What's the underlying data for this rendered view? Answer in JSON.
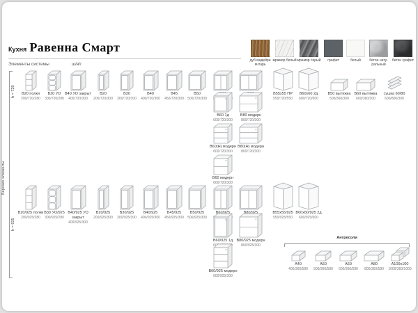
{
  "page": {
    "title_prefix": "Кухня",
    "title": "Равенна Смарт",
    "subtitle": "Элементы системы",
    "dims_legend": "ш/в/г"
  },
  "materials": [
    {
      "label": "дуб мадейра янтарь",
      "finish": "wood",
      "color": "#9a6e3c"
    },
    {
      "label": "мрамор белый",
      "finish": "marble-white",
      "color": "#f2f2f0"
    },
    {
      "label": "мрамор серый",
      "finish": "marble-grey",
      "color": "#6e7072"
    },
    {
      "label": "графит",
      "finish": "graphite",
      "color": "#5d6266"
    },
    {
      "label": "белый",
      "finish": "white",
      "color": "#f8f8f6"
    },
    {
      "label": "бетон нату-ральный",
      "finish": "concrete-natural",
      "color": "#b4b6b8"
    },
    {
      "label": "бетон графит",
      "finish": "concrete-graphite",
      "color": "#3b3d3f"
    }
  ],
  "side_label": "Верхние элементы",
  "groups": [
    {
      "height_label": "h = 720",
      "items": [
        {
          "name": "В20 полки",
          "dims": "200/720/280",
          "icon": "cabinet-shelves"
        },
        {
          "name": "В30 УО",
          "dims": "300/720/280",
          "icon": "cabinet-open-rounded"
        },
        {
          "name": "В40 УО закрыт",
          "dims": "400/720/300",
          "icon": "cabinet-door"
        },
        {
          "name": "В20",
          "dims": "200/720/300",
          "icon": "cabinet-door"
        },
        {
          "name": "В30",
          "dims": "300/720/300",
          "icon": "cabinet-door"
        },
        {
          "name": "В40",
          "dims": "400/720/300",
          "icon": "cabinet-door"
        },
        {
          "name": "В45",
          "dims": "450/720/300",
          "icon": "cabinet-door"
        },
        {
          "name": "В50",
          "dims": "500/720/300",
          "icon": "cabinet-door"
        },
        {
          "name": "В60",
          "dims": "600/720/300",
          "icon": "cabinet-2door"
        },
        {
          "name": "В80",
          "dims": "800/720/300",
          "icon": "cabinet-2door"
        },
        {
          "name": "В55х55 ПР",
          "dims": "550/720/550",
          "icon": "cabinet-corner"
        },
        {
          "name": "В60х60 2д",
          "dims": "600/720/600",
          "icon": "cabinet-corner"
        },
        {
          "name": "В50 вытяжка",
          "dims": "500/360/300",
          "icon": "hood-box"
        },
        {
          "name": "В60 вытяжка",
          "dims": "600/360/300",
          "icon": "hood-box"
        },
        {
          "name": "сушка 60/80",
          "dims": "600/800/300",
          "icon": "dish-dryer"
        }
      ],
      "extras": [
        {
          "row": 0,
          "col": 8,
          "name": "В60 1д",
          "dims": "600/720/300",
          "icon": "cabinet-door-handle"
        },
        {
          "row": 0,
          "col": 9,
          "name": "В80 модерн",
          "dims": "800/720/300",
          "icon": "cabinet-modern-2"
        },
        {
          "row": 1,
          "col": 8,
          "name": "В60(Н) модерн",
          "dims": "600/720/300",
          "icon": "cabinet-modern-3"
        },
        {
          "row": 1,
          "col": 9,
          "name": "В80(Н) модерн",
          "dims": "800/720/300",
          "icon": "cabinet-modern-3"
        },
        {
          "row": 2,
          "col": 8,
          "name": "В60 модерн",
          "dims": "600/720/300",
          "icon": "cabinet-modern-2"
        }
      ]
    },
    {
      "height_label": "h = 925",
      "items": [
        {
          "name": "В20/925 полки",
          "dims": "200/925/280",
          "icon": "cabinet-shelves"
        },
        {
          "name": "В30 УО/925",
          "dims": "300/925/280",
          "icon": "cabinet-open-rounded"
        },
        {
          "name": "В40/925 УО закрыт",
          "dims": "400/925/300",
          "icon": "cabinet-door"
        },
        {
          "name": "В20/925",
          "dims": "200/925/300",
          "icon": "cabinet-door"
        },
        {
          "name": "В30/925",
          "dims": "300/925/300",
          "icon": "cabinet-door"
        },
        {
          "name": "В40/925",
          "dims": "400/925/300",
          "icon": "cabinet-door"
        },
        {
          "name": "В45/925",
          "dims": "450/925/300",
          "icon": "cabinet-door"
        },
        {
          "name": "В50/925",
          "dims": "500/925/300",
          "icon": "cabinet-door"
        },
        {
          "name": "В60/925",
          "dims": "600/925/300",
          "icon": "cabinet-2door"
        },
        {
          "name": "В80/925",
          "dims": "800/925/300",
          "icon": "cabinet-2door"
        },
        {
          "name": "В55х55/925",
          "dims": "550/925/550",
          "icon": "cabinet-corner"
        },
        {
          "name": "В60х60/925 2д",
          "dims": "600/925/600",
          "icon": "cabinet-corner"
        }
      ],
      "extras": [
        {
          "row": 0,
          "col": 8,
          "name": "В60/925 1д",
          "dims": "600/925/300",
          "icon": "cabinet-door-handle"
        },
        {
          "row": 0,
          "col": 9,
          "name": "В80/925 модерн",
          "dims": "800/925/300",
          "icon": "cabinet-modern-2"
        },
        {
          "row": 1,
          "col": 8,
          "name": "В60/925 модерн",
          "dims": "600/925/300",
          "icon": "cabinet-modern-3"
        }
      ]
    }
  ],
  "antresoli": {
    "title": "Антресоли",
    "items": [
      {
        "name": "А40",
        "dims": "400/360/580",
        "icon": "antresol-box"
      },
      {
        "name": "А50",
        "dims": "500/360/580",
        "icon": "antresol-box"
      },
      {
        "name": "А60",
        "dims": "600/360/580",
        "icon": "antresol-box"
      },
      {
        "name": "А80",
        "dims": "800/360/580",
        "icon": "antresol-box"
      },
      {
        "name": "А100х100",
        "dims": "1000/360/1000",
        "icon": "antresol-corner"
      }
    ]
  }
}
